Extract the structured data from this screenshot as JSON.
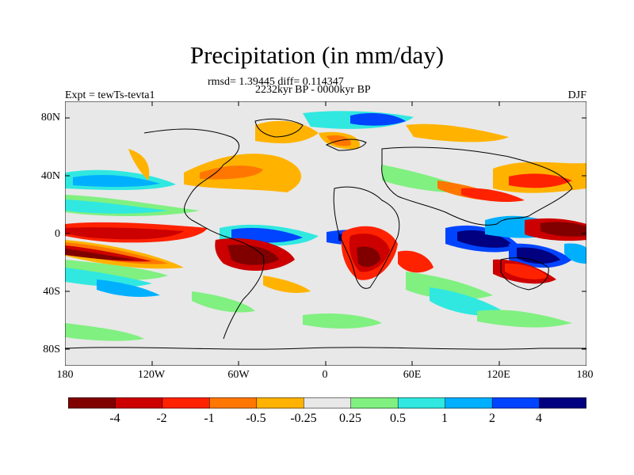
{
  "title": "Precipitation (in mm/day)",
  "stats_line": "rmsd= 1.39445 diff= 0.114347",
  "period_line": "2232kyr BP - 0000kyr BP",
  "experiment_label": "Expt = tewTs-tevta1",
  "season_label": "DJF",
  "lat_labels": [
    "80N",
    "40N",
    "0",
    "40S",
    "80S"
  ],
  "lon_labels": [
    "180",
    "120W",
    "60W",
    "0",
    "60E",
    "120E",
    "180"
  ],
  "colorbar": {
    "labels": [
      "-4",
      "-2",
      "-1",
      "-0.5",
      "-0.25",
      "0.25",
      "0.5",
      "1",
      "2",
      "4"
    ],
    "colors": [
      "#800000",
      "#cc0000",
      "#ff2200",
      "#ff7700",
      "#ffb300",
      "#e8e8e8",
      "#80f080",
      "#30e8e0",
      "#00b0ff",
      "#0044ff",
      "#000080"
    ]
  }
}
